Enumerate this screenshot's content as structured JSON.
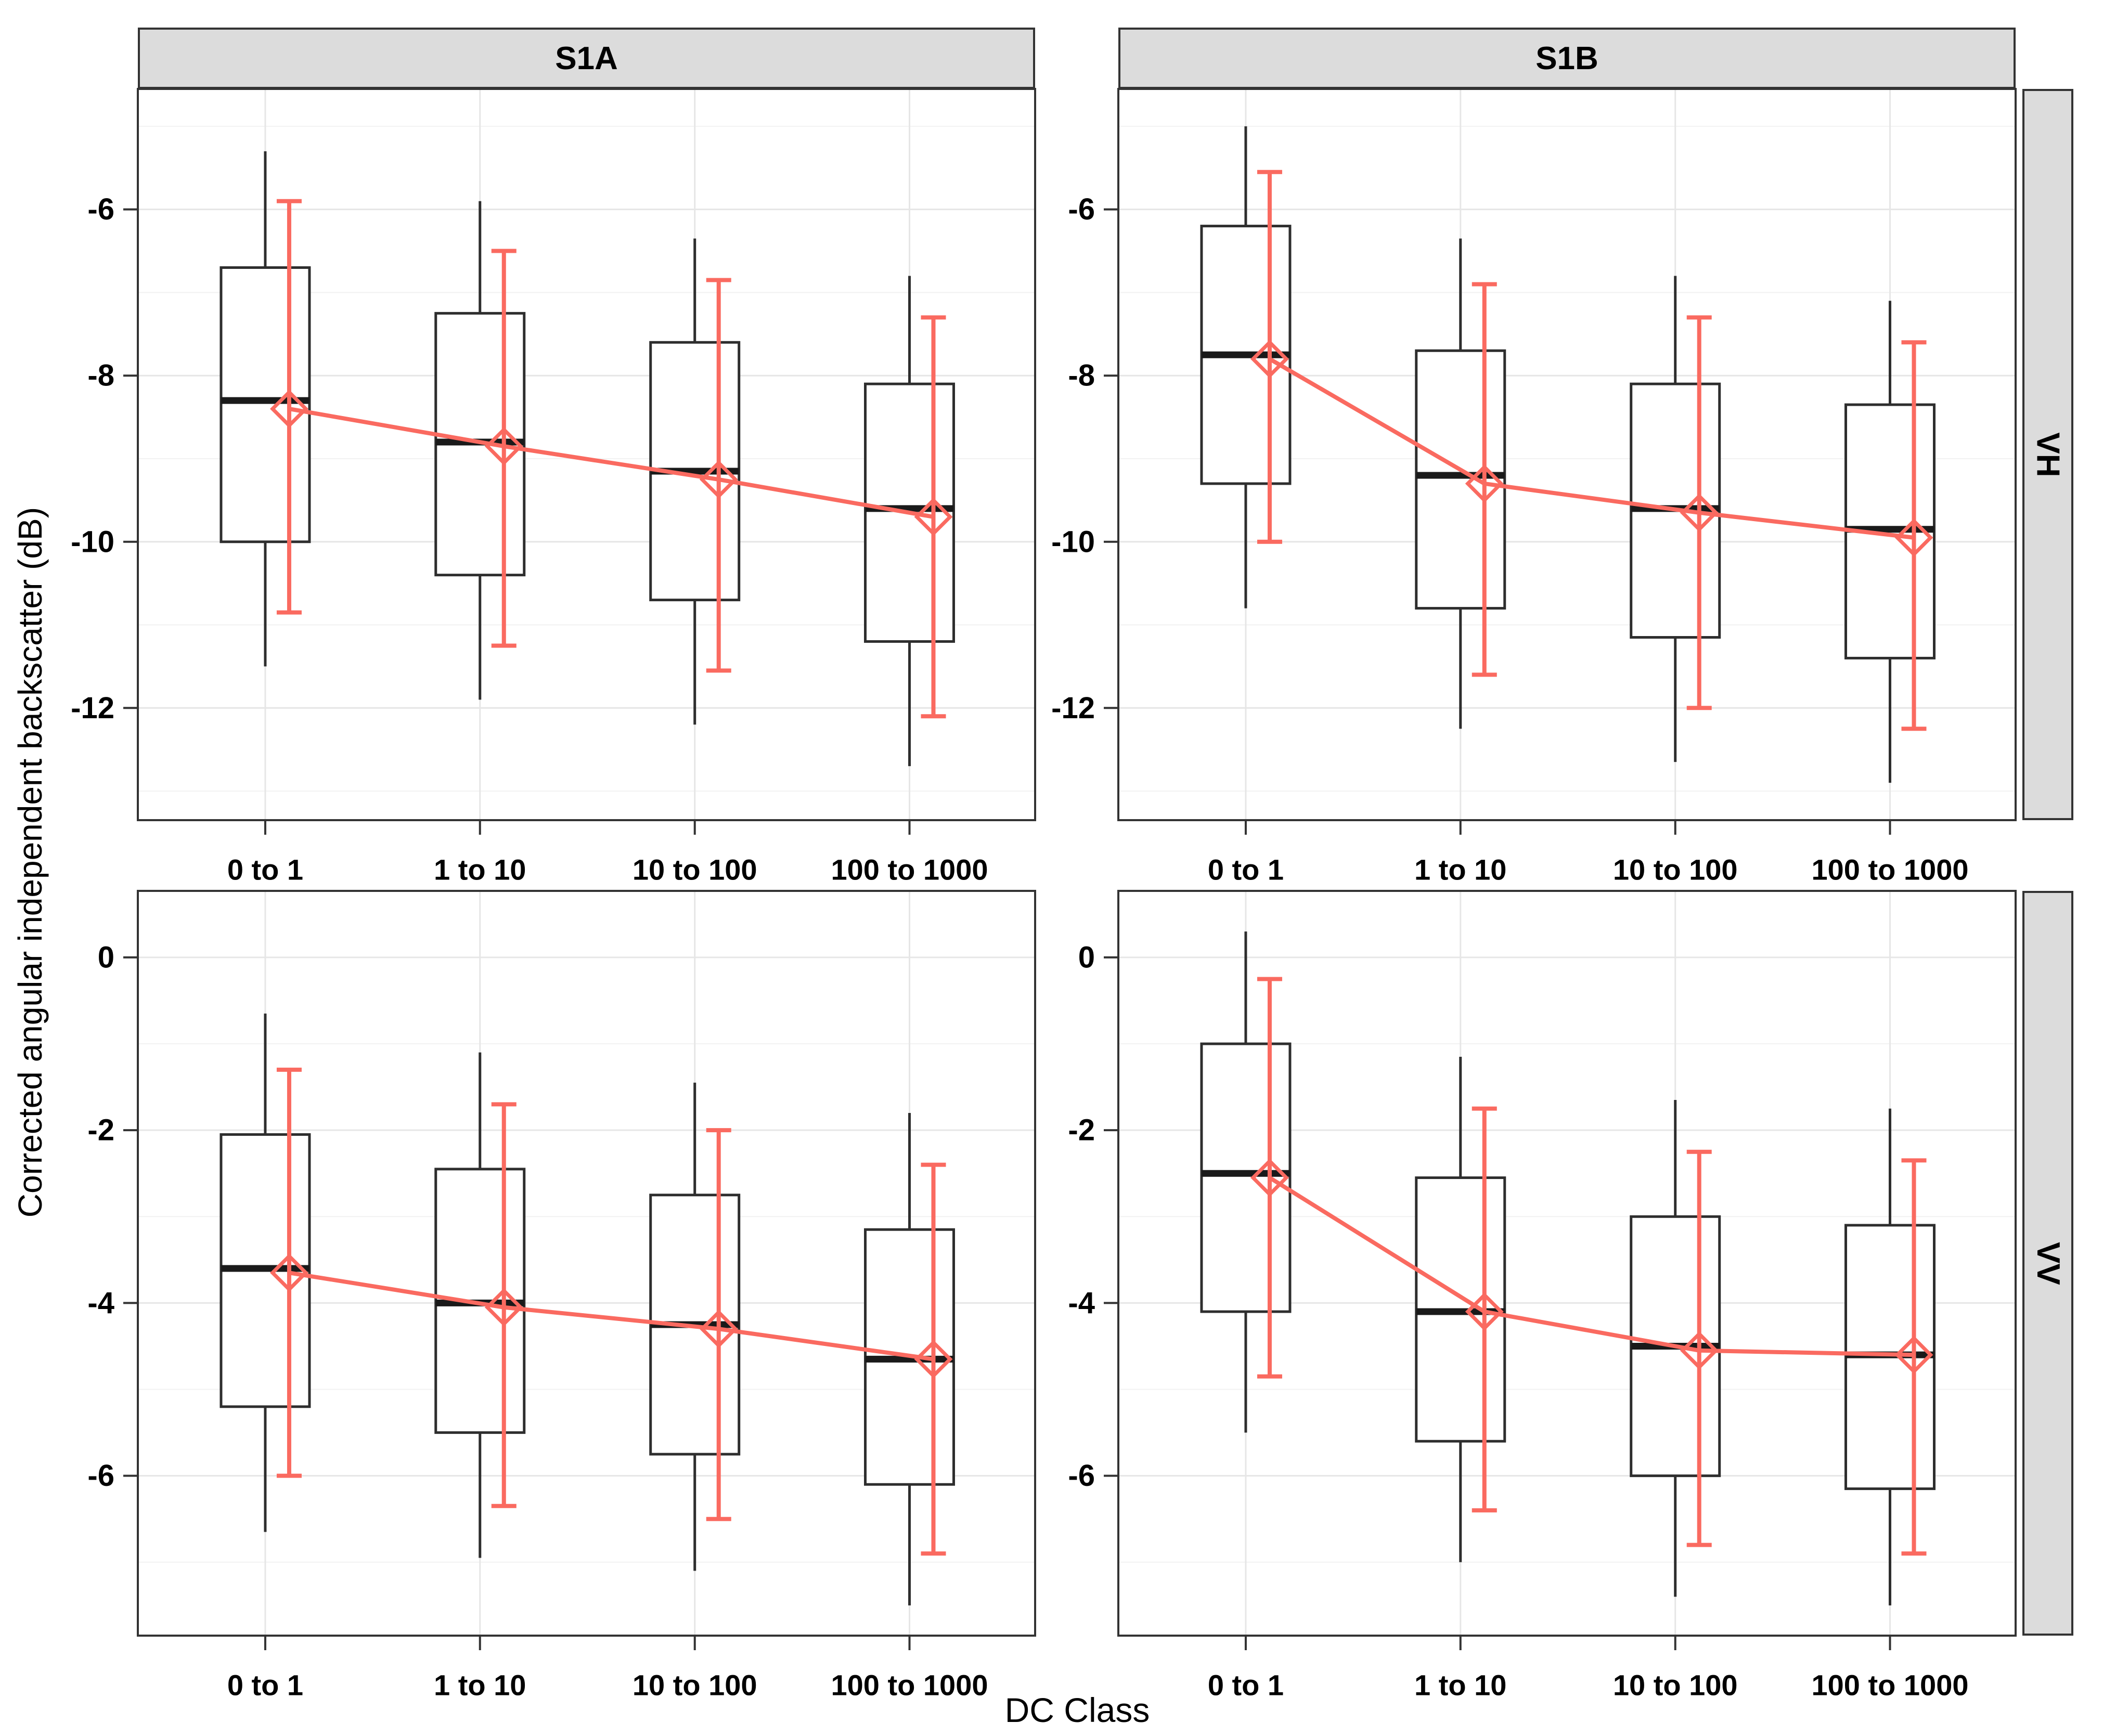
{
  "figure": {
    "y_axis_title": "Corrected angular independent backscatter (dB)",
    "x_axis_title": "DC Class",
    "colors": {
      "mean_series": "#FA6A60",
      "box_stroke": "#2E2E2E",
      "median": "#1A1A1A",
      "panel_border": "#333333",
      "strip_fill": "#DCDCDC",
      "grid_major": "#E6E6E6",
      "grid_minor": "#F2F2F2",
      "tick": "#333333",
      "text": "#000000"
    }
  },
  "chart_data": {
    "type": "boxplot",
    "title": "",
    "x_label": "DC Class",
    "y_label": "Corrected angular independent backscatter (dB)",
    "categories": [
      "0 to 1",
      "1 to 10",
      "10 to 100",
      "100 to 1000"
    ],
    "facets": {
      "columns": [
        "S1A",
        "S1B"
      ],
      "rows": [
        "VH",
        "VV"
      ]
    },
    "legend": "none",
    "grid": "major-and-minor",
    "rows": [
      {
        "name": "VH",
        "ylim": [
          -13.35,
          -4.55
        ],
        "yticks": [
          -6,
          -8,
          -10,
          -12
        ]
      },
      {
        "name": "VV",
        "ylim": [
          -7.85,
          0.77
        ],
        "yticks": [
          0,
          -2,
          -4,
          -6
        ]
      }
    ],
    "panels": [
      {
        "facet_col": "S1A",
        "facet_row": "VH",
        "boxes": [
          {
            "category": "0 to 1",
            "whisker_low": -11.5,
            "q1": -10.0,
            "median": -8.3,
            "q3": -6.7,
            "whisker_high": -5.3
          },
          {
            "category": "1 to 10",
            "whisker_low": -11.9,
            "q1": -10.4,
            "median": -8.8,
            "q3": -7.25,
            "whisker_high": -5.9
          },
          {
            "category": "10 to 100",
            "whisker_low": -12.2,
            "q1": -10.7,
            "median": -9.15,
            "q3": -7.6,
            "whisker_high": -6.35
          },
          {
            "category": "100 to 1000",
            "whisker_low": -12.7,
            "q1": -11.2,
            "median": -9.6,
            "q3": -8.1,
            "whisker_high": -6.8
          }
        ],
        "means": [
          {
            "mean": -8.4,
            "err_low": -10.85,
            "err_high": -5.9
          },
          {
            "mean": -8.85,
            "err_low": -11.25,
            "err_high": -6.5
          },
          {
            "mean": -9.25,
            "err_low": -11.55,
            "err_high": -6.85
          },
          {
            "mean": -9.7,
            "err_low": -12.1,
            "err_high": -7.3
          }
        ]
      },
      {
        "facet_col": "S1B",
        "facet_row": "VH",
        "boxes": [
          {
            "category": "0 to 1",
            "whisker_low": -10.8,
            "q1": -9.3,
            "median": -7.75,
            "q3": -6.2,
            "whisker_high": -5.0
          },
          {
            "category": "1 to 10",
            "whisker_low": -12.25,
            "q1": -10.8,
            "median": -9.2,
            "q3": -7.7,
            "whisker_high": -6.35
          },
          {
            "category": "10 to 100",
            "whisker_low": -12.65,
            "q1": -11.15,
            "median": -9.6,
            "q3": -8.1,
            "whisker_high": -6.8
          },
          {
            "category": "100 to 1000",
            "whisker_low": -12.9,
            "q1": -11.4,
            "median": -9.85,
            "q3": -8.35,
            "whisker_high": -7.1
          }
        ],
        "means": [
          {
            "mean": -7.8,
            "err_low": -10.0,
            "err_high": -5.55
          },
          {
            "mean": -9.3,
            "err_low": -11.6,
            "err_high": -6.9
          },
          {
            "mean": -9.65,
            "err_low": -12.0,
            "err_high": -7.3
          },
          {
            "mean": -9.95,
            "err_low": -12.25,
            "err_high": -7.6
          }
        ]
      },
      {
        "facet_col": "S1A",
        "facet_row": "VV",
        "boxes": [
          {
            "category": "0 to 1",
            "whisker_low": -6.65,
            "q1": -5.2,
            "median": -3.6,
            "q3": -2.05,
            "whisker_high": -0.65
          },
          {
            "category": "1 to 10",
            "whisker_low": -6.95,
            "q1": -5.5,
            "median": -4.0,
            "q3": -2.45,
            "whisker_high": -1.1
          },
          {
            "category": "10 to 100",
            "whisker_low": -7.1,
            "q1": -5.75,
            "median": -4.25,
            "q3": -2.75,
            "whisker_high": -1.45
          },
          {
            "category": "100 to 1000",
            "whisker_low": -7.5,
            "q1": -6.1,
            "median": -4.65,
            "q3": -3.15,
            "whisker_high": -1.8
          }
        ],
        "means": [
          {
            "mean": -3.65,
            "err_low": -6.0,
            "err_high": -1.3
          },
          {
            "mean": -4.05,
            "err_low": -6.35,
            "err_high": -1.7
          },
          {
            "mean": -4.3,
            "err_low": -6.5,
            "err_high": -2.0
          },
          {
            "mean": -4.65,
            "err_low": -6.9,
            "err_high": -2.4
          }
        ]
      },
      {
        "facet_col": "S1B",
        "facet_row": "VV",
        "boxes": [
          {
            "category": "0 to 1",
            "whisker_low": -5.5,
            "q1": -4.1,
            "median": -2.5,
            "q3": -1.0,
            "whisker_high": 0.3
          },
          {
            "category": "1 to 10",
            "whisker_low": -7.0,
            "q1": -5.6,
            "median": -4.1,
            "q3": -2.55,
            "whisker_high": -1.15
          },
          {
            "category": "10 to 100",
            "whisker_low": -7.4,
            "q1": -6.0,
            "median": -4.5,
            "q3": -3.0,
            "whisker_high": -1.65
          },
          {
            "category": "100 to 1000",
            "whisker_low": -7.5,
            "q1": -6.15,
            "median": -4.6,
            "q3": -3.1,
            "whisker_high": -1.75
          }
        ],
        "means": [
          {
            "mean": -2.55,
            "err_low": -4.85,
            "err_high": -0.25
          },
          {
            "mean": -4.1,
            "err_low": -6.4,
            "err_high": -1.75
          },
          {
            "mean": -4.55,
            "err_low": -6.8,
            "err_high": -2.25
          },
          {
            "mean": -4.6,
            "err_low": -6.9,
            "err_high": -2.35
          }
        ]
      }
    ]
  }
}
